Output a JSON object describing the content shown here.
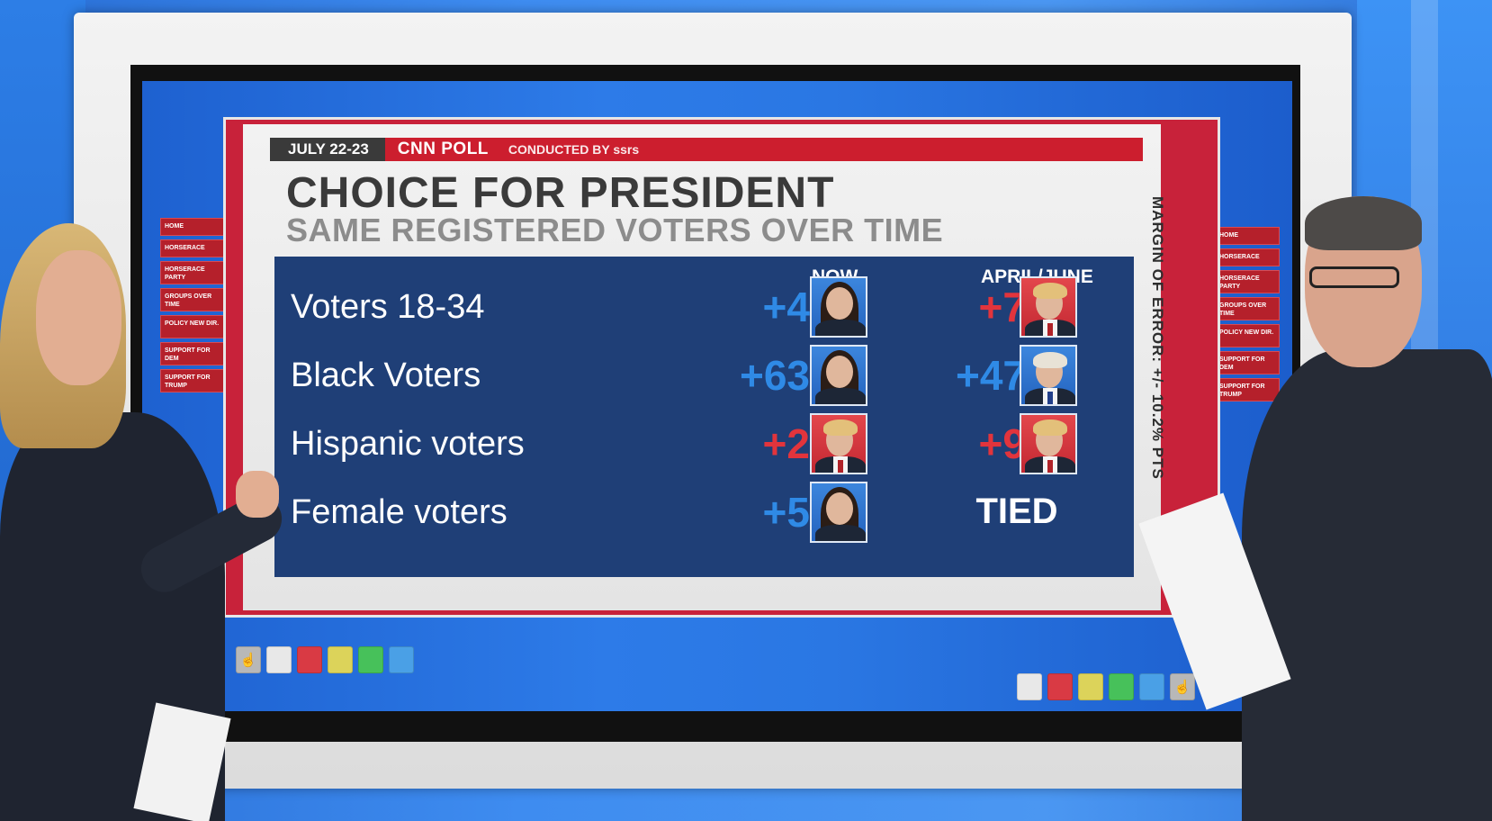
{
  "poll": {
    "date": "JULY 22-23",
    "name": "CNN POLL",
    "conducted": "CONDUCTED BY ssrs"
  },
  "title": "CHOICE FOR PRESIDENT",
  "subtitle": "SAME REGISTERED VOTERS OVER TIME",
  "margin_note": "MARGIN OF ERROR: +/- 10.2% PTS",
  "columns": {
    "now": "NOW",
    "earlier": "APRIL/JUNE"
  },
  "rows": [
    {
      "label": "Voters 18-34",
      "now": "+4",
      "now_party": "dem",
      "earlier": "+7",
      "earlier_party": "rep"
    },
    {
      "label": "Black Voters",
      "now": "+63",
      "now_party": "dem",
      "earlier": "+47",
      "earlier_party": "dem"
    },
    {
      "label": "Hispanic voters",
      "now": "+2",
      "now_party": "rep",
      "earlier": "+9",
      "earlier_party": "rep"
    },
    {
      "label": "Female voters",
      "now": "+5",
      "now_party": "dem",
      "earlier": "TIED",
      "earlier_party": "none"
    }
  ],
  "colors": {
    "dem": "#2f8ae6",
    "rep": "#e2343c",
    "panel": "#1f3f77",
    "accent_red": "#cc1e2e"
  },
  "side_menu": [
    "HOME",
    "HORSERACE",
    "HORSERACE PARTY",
    "GROUPS OVER TIME",
    "POLICY NEW DIR.",
    "SUPPORT FOR DEM",
    "SUPPORT FOR TRUMP"
  ],
  "tool_chips": {
    "left": [
      "hand-tool-icon",
      "#e8e8e8",
      "#d93a44",
      "#dcd35a",
      "#47c15a",
      "#4aa0e6"
    ],
    "right": [
      "#e8e8e8",
      "#d93a44",
      "#dcd35a",
      "#47c15a",
      "#4aa0e6",
      "hand-tool-icon"
    ]
  }
}
